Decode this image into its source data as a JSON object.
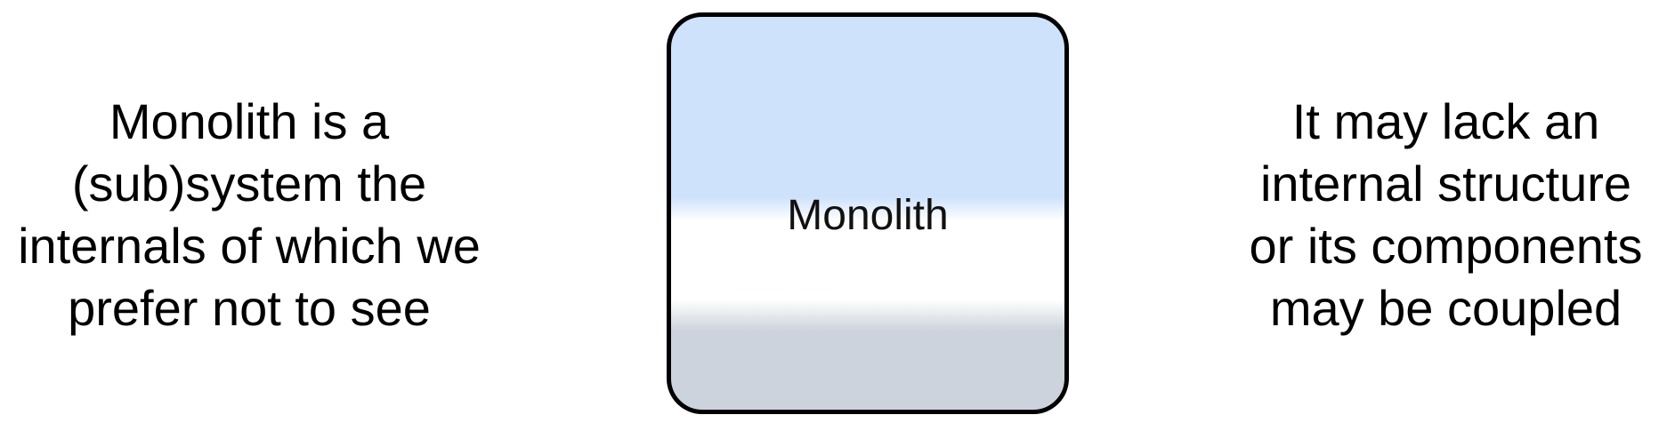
{
  "left_text": {
    "lines": [
      "Monolith is a",
      "(sub)system the",
      "internals of which we",
      "prefer not to see"
    ]
  },
  "monolith": {
    "label": "Monolith",
    "colors": {
      "top": "#cfe2fc",
      "middle": "#ffffff",
      "bottom": "#cdd3dc",
      "border": "#000000"
    }
  },
  "right_text": {
    "lines": [
      "It may lack an",
      "internal structure",
      "or its components",
      "may be coupled"
    ]
  }
}
